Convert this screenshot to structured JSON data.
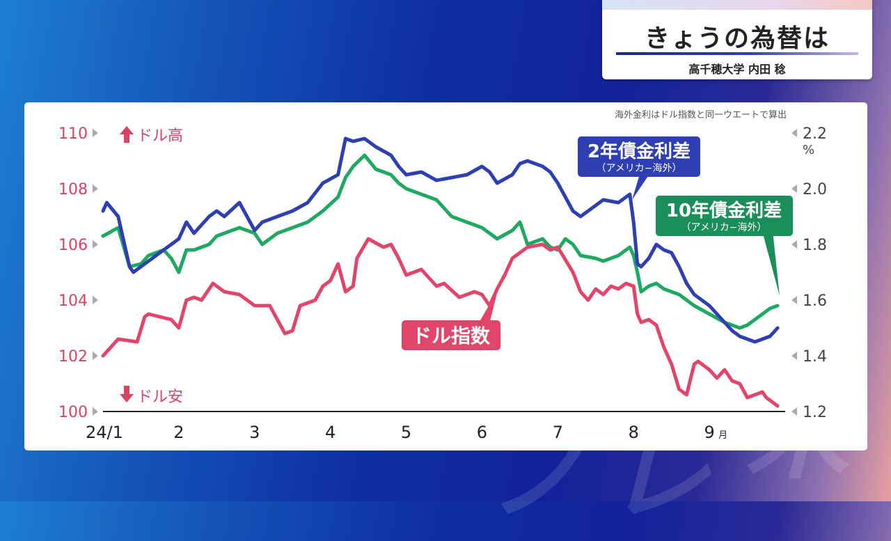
{
  "header": {
    "title": "きょうの為替は",
    "subtitle": "高千穂大学 内田 稔"
  },
  "chart_data": {
    "type": "line",
    "note": "海外金利はドル指数と同一ウエートで算出",
    "x_ticks": [
      "24/1",
      "2",
      "3",
      "4",
      "5",
      "6",
      "7",
      "8",
      "9"
    ],
    "x_unit": "月",
    "x_range": [
      1,
      10.0
    ],
    "left_axis": {
      "ticks": [
        "110",
        "108",
        "106",
        "104",
        "102",
        "100"
      ],
      "range": [
        100,
        110
      ],
      "color": "#d44463",
      "top_label": "ドル高",
      "bottom_label": "ドル安"
    },
    "right_axis": {
      "ticks": [
        "2.2",
        "2.0",
        "1.8",
        "1.6",
        "1.4",
        "1.2"
      ],
      "range": [
        1.2,
        2.2
      ],
      "unit": "%"
    },
    "series": [
      {
        "name": "ドル指数",
        "axis": "left",
        "color": "#e2456a",
        "x": [
          1.0,
          1.2,
          1.45,
          1.55,
          1.6,
          1.9,
          2.0,
          2.1,
          2.2,
          2.3,
          2.45,
          2.6,
          2.8,
          3.0,
          3.2,
          3.4,
          3.5,
          3.6,
          3.8,
          3.9,
          4.0,
          4.1,
          4.2,
          4.3,
          4.35,
          4.5,
          4.7,
          4.8,
          4.9,
          5.0,
          5.2,
          5.4,
          5.5,
          5.7,
          5.9,
          6.0,
          6.1,
          6.2,
          6.3,
          6.4,
          6.5,
          6.6,
          6.8,
          6.9,
          7.0,
          7.2,
          7.3,
          7.4,
          7.5,
          7.6,
          7.7,
          7.8,
          7.9,
          8.0,
          8.05,
          8.1,
          8.2,
          8.3,
          8.4,
          8.5,
          8.6,
          8.7,
          8.8,
          8.85,
          9.0,
          9.1,
          9.2,
          9.3,
          9.4,
          9.5,
          9.6,
          9.7,
          9.75,
          9.85,
          9.9
        ],
        "y": [
          102.0,
          102.6,
          102.5,
          103.4,
          103.5,
          103.3,
          103.0,
          104.0,
          104.1,
          104.0,
          104.6,
          104.3,
          104.2,
          103.8,
          103.8,
          102.8,
          102.9,
          103.8,
          104.0,
          104.5,
          104.7,
          105.3,
          104.3,
          104.5,
          105.5,
          106.2,
          105.9,
          106.0,
          105.5,
          104.9,
          105.1,
          104.5,
          104.6,
          104.1,
          104.3,
          104.2,
          103.8,
          104.4,
          104.9,
          105.5,
          105.7,
          105.9,
          106.0,
          105.8,
          105.9,
          105.0,
          104.3,
          104.0,
          104.4,
          104.2,
          104.5,
          104.4,
          104.6,
          104.5,
          103.5,
          103.2,
          103.3,
          103.1,
          102.3,
          101.7,
          100.8,
          100.6,
          101.7,
          101.8,
          101.5,
          101.2,
          101.5,
          101.1,
          101.0,
          100.5,
          100.6,
          100.7,
          100.5,
          100.3,
          100.2
        ]
      },
      {
        "name": "2年債金利差",
        "sublabel": "（アメリカ−海外）",
        "axis": "right",
        "color": "#2d3fb3",
        "x": [
          1.0,
          1.05,
          1.2,
          1.35,
          1.4,
          1.5,
          1.65,
          1.8,
          1.9,
          2.0,
          2.1,
          2.2,
          2.4,
          2.5,
          2.6,
          2.8,
          3.0,
          3.1,
          3.3,
          3.5,
          3.7,
          3.9,
          4.1,
          4.2,
          4.3,
          4.45,
          4.6,
          4.8,
          4.9,
          5.0,
          5.2,
          5.4,
          5.6,
          5.8,
          6.0,
          6.1,
          6.2,
          6.4,
          6.5,
          6.6,
          6.8,
          6.9,
          7.0,
          7.1,
          7.2,
          7.3,
          7.5,
          7.6,
          7.8,
          7.95,
          8.0,
          8.05,
          8.1,
          8.2,
          8.3,
          8.4,
          8.5,
          8.6,
          8.7,
          8.8,
          9.0,
          9.2,
          9.3,
          9.4,
          9.5,
          9.6,
          9.7,
          9.8,
          9.9
        ],
        "y": [
          1.92,
          1.95,
          1.9,
          1.72,
          1.7,
          1.72,
          1.75,
          1.78,
          1.8,
          1.82,
          1.88,
          1.84,
          1.9,
          1.92,
          1.9,
          1.95,
          1.85,
          1.88,
          1.9,
          1.92,
          1.95,
          2.02,
          2.05,
          2.18,
          2.17,
          2.18,
          2.15,
          2.12,
          2.08,
          2.05,
          2.06,
          2.03,
          2.04,
          2.05,
          2.08,
          2.06,
          2.02,
          2.05,
          2.09,
          2.1,
          2.08,
          2.06,
          2.02,
          1.97,
          1.92,
          1.9,
          1.94,
          1.96,
          1.95,
          1.98,
          1.88,
          1.73,
          1.72,
          1.75,
          1.8,
          1.78,
          1.77,
          1.72,
          1.66,
          1.62,
          1.58,
          1.52,
          1.49,
          1.47,
          1.46,
          1.45,
          1.46,
          1.47,
          1.5
        ]
      },
      {
        "name": "10年債金利差",
        "sublabel": "（アメリカ−海外）",
        "axis": "right",
        "color": "#1ea862",
        "x": [
          1.0,
          1.2,
          1.35,
          1.5,
          1.6,
          1.8,
          1.9,
          2.0,
          2.1,
          2.2,
          2.4,
          2.5,
          2.6,
          2.8,
          3.0,
          3.1,
          3.3,
          3.5,
          3.7,
          3.9,
          4.1,
          4.2,
          4.3,
          4.45,
          4.6,
          4.8,
          4.9,
          5.0,
          5.2,
          5.4,
          5.6,
          5.8,
          6.0,
          6.1,
          6.2,
          6.4,
          6.5,
          6.6,
          6.8,
          6.9,
          7.0,
          7.1,
          7.2,
          7.3,
          7.5,
          7.6,
          7.8,
          7.95,
          8.0,
          8.05,
          8.1,
          8.2,
          8.3,
          8.4,
          8.5,
          8.6,
          8.7,
          8.8,
          9.0,
          9.2,
          9.3,
          9.4,
          9.5,
          9.6,
          9.7,
          9.8,
          9.9
        ],
        "y": [
          1.83,
          1.86,
          1.72,
          1.73,
          1.76,
          1.78,
          1.75,
          1.7,
          1.78,
          1.78,
          1.8,
          1.83,
          1.84,
          1.86,
          1.84,
          1.8,
          1.84,
          1.86,
          1.88,
          1.92,
          1.97,
          2.04,
          2.08,
          2.12,
          2.07,
          2.05,
          2.02,
          2.0,
          1.98,
          1.96,
          1.9,
          1.88,
          1.86,
          1.84,
          1.82,
          1.85,
          1.88,
          1.8,
          1.82,
          1.79,
          1.78,
          1.82,
          1.8,
          1.76,
          1.75,
          1.74,
          1.76,
          1.79,
          1.76,
          1.7,
          1.63,
          1.65,
          1.66,
          1.64,
          1.63,
          1.62,
          1.6,
          1.58,
          1.55,
          1.52,
          1.51,
          1.5,
          1.51,
          1.53,
          1.55,
          1.57,
          1.58
        ]
      }
    ]
  }
}
